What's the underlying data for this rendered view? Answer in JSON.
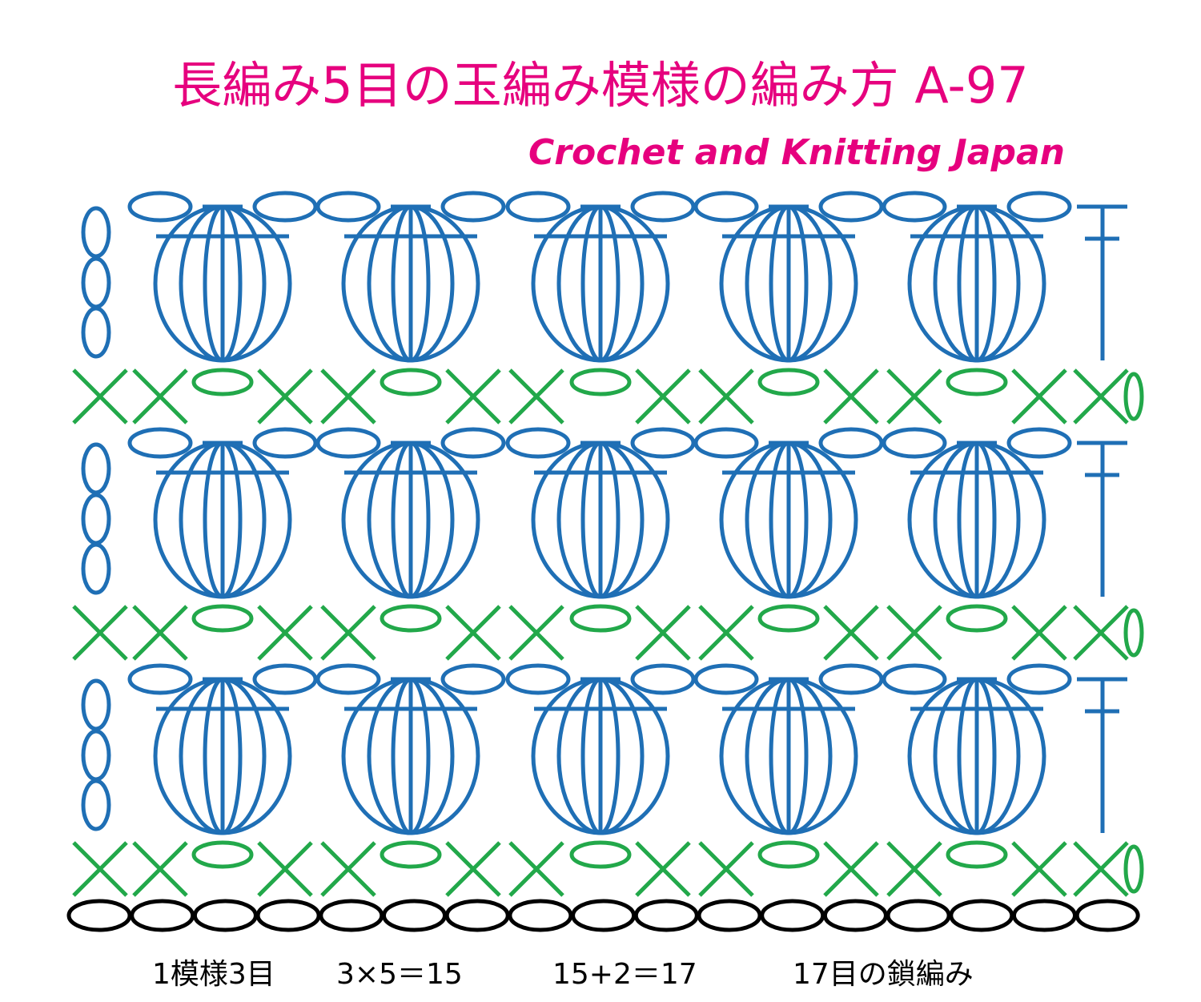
{
  "header": {
    "title": "長編み5目の玉編み模様の編み方 A-97",
    "subtitle": "Crochet and Knitting Japan"
  },
  "footer": {
    "items": [
      "1模様3目",
      "3×5＝15",
      "15+2＝17",
      "17目の鎖編み"
    ]
  }
}
